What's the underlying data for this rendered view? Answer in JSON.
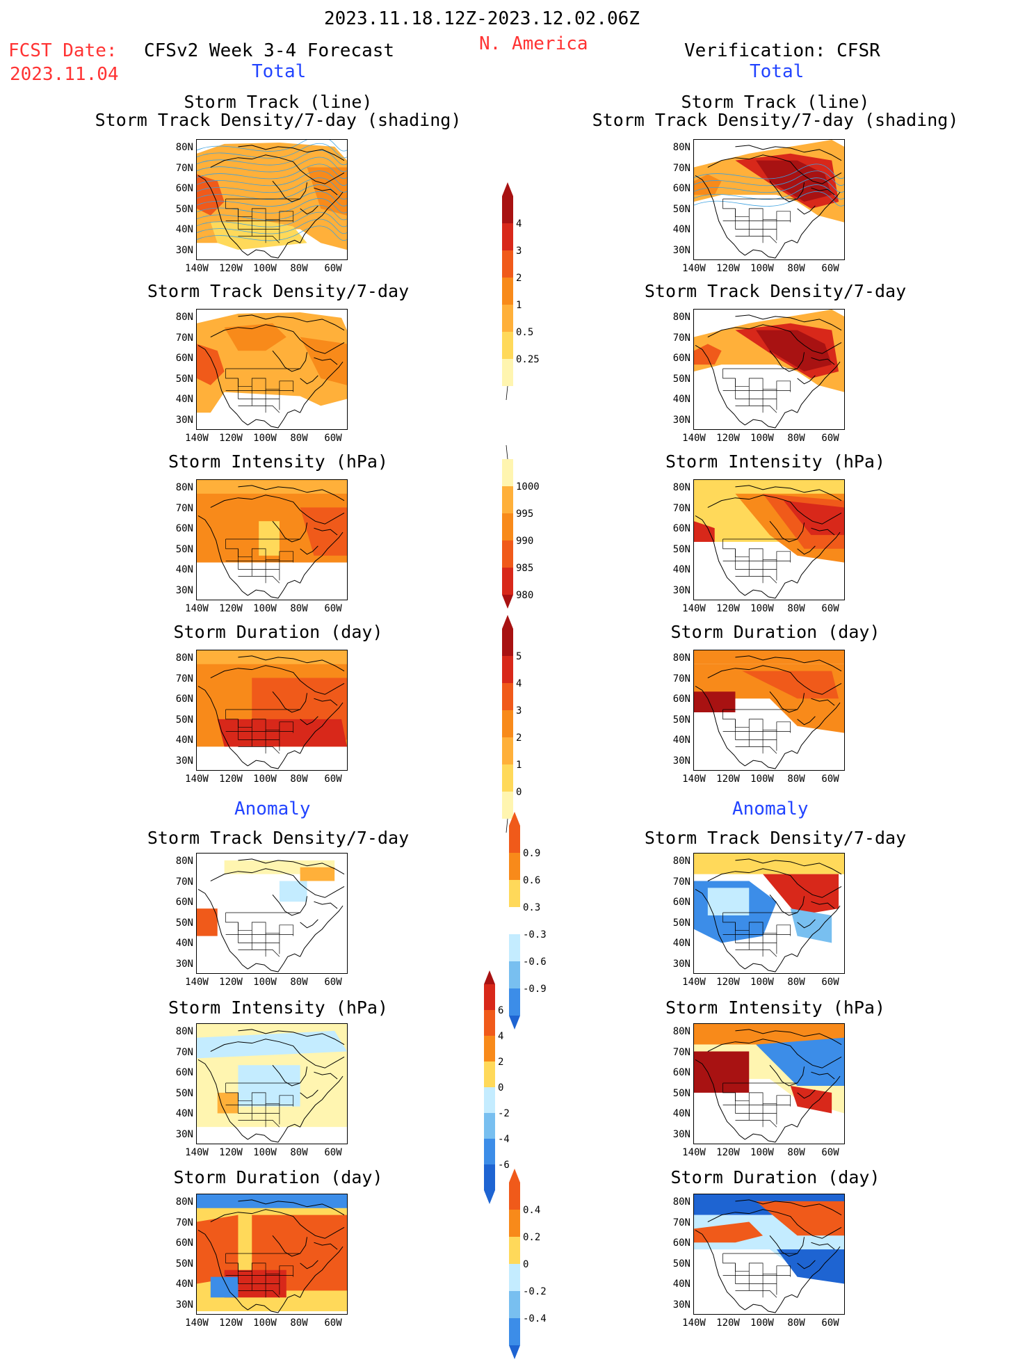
{
  "header": {
    "date_range": "2023.11.18.12Z-2023.12.02.06Z",
    "region": "N. America",
    "fcst_label": "FCST Date:",
    "fcst_date": "2023.11.04",
    "model_title": "CFSv2 Week 3-4 Forecast",
    "verification_title": "Verification: CFSR",
    "total_left": "Total",
    "total_right": "Total",
    "anomaly_left": "Anomaly",
    "anomaly_right": "Anomaly"
  },
  "axes": {
    "lat_ticks": [
      "80N",
      "70N",
      "60N",
      "50N",
      "40N",
      "30N"
    ],
    "lon_ticks": [
      "140W",
      "120W",
      "100W",
      "80W",
      "60W"
    ]
  },
  "panels": {
    "track_line": "Storm Track (line)",
    "track_shading": "Storm Track Density/7-day (shading)",
    "track_density": "Storm Track Density/7-day",
    "intensity": "Storm Intensity (hPa)",
    "duration": "Storm Duration (day)"
  },
  "colorbars": {
    "density_total": [
      "4",
      "3",
      "2",
      "1",
      "0.5",
      "0.25"
    ],
    "intensity_total": [
      "1000",
      "995",
      "990",
      "985",
      "980"
    ],
    "duration_total": [
      "5",
      "4",
      "3",
      "2",
      "1",
      "0"
    ],
    "density_anom": [
      "0.9",
      "0.6",
      "0.3",
      "-0.3",
      "-0.6",
      "-0.9"
    ],
    "intensity_anom": [
      "6",
      "4",
      "2",
      "0",
      "-2",
      "-4",
      "-6"
    ],
    "duration_anom": [
      "0.4",
      "0.2",
      "0",
      "-0.2",
      "-0.4"
    ]
  },
  "colors": {
    "title_red": "#ff3333",
    "title_blue": "#2244ff",
    "pale_yellow": "#fff5b0",
    "yellow": "#ffd95a",
    "light_orange": "#ffb03a",
    "orange": "#f88a1a",
    "red_orange": "#f05a1a",
    "red": "#d8281a",
    "dark_red": "#a81212",
    "light_blue": "#c4ecff",
    "mid_blue": "#78bff0",
    "blue": "#3c8de8",
    "dark_blue": "#1e64d2"
  }
}
